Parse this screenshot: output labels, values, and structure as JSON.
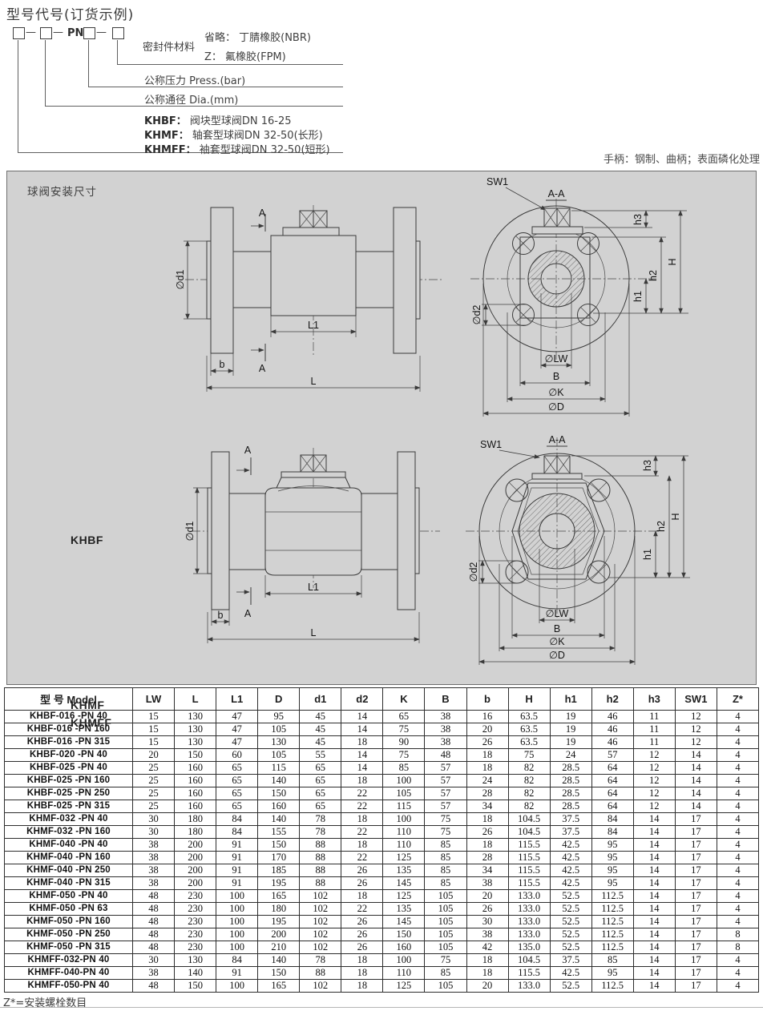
{
  "page": {
    "title": "型号代号(订货示例)",
    "footnote": "Z*=安装螺栓数目"
  },
  "header": {
    "code": {
      "dash": "—",
      "pn": "PN"
    },
    "seal_label": "密封件材料",
    "seal_default": "省略： 丁腈橡胶(NBR)",
    "seal_z": "Z： 氟橡胶(FPM)",
    "pressure": "公称压力 Press.(bar)",
    "diameter": "公称通径 Dia.(mm)",
    "models": [
      {
        "code": "KHBF：",
        "desc": "阀块型球阀DN 16-25"
      },
      {
        "code": "KHMF：",
        "desc": "轴套型球阀DN 32-50(长形)"
      },
      {
        "code": "KHMFF：",
        "desc": "袖套型球阀DN 32-50(短形)"
      }
    ],
    "handle_note": "手柄：钢制、曲柄；表面磷化处理"
  },
  "drawing": {
    "panel_title": "球阀安装尺寸",
    "view1_label": "KHBF",
    "view2_label1": "KHMF",
    "view2_label2": "KHMFF"
  },
  "dims": {
    "d1": "∅d1",
    "L1": "L1",
    "b": "b",
    "L": "L",
    "A": "A",
    "sw1": "SW1",
    "section": "A-A",
    "h1": "h1",
    "h2": "h2",
    "h3": "h3",
    "H": "H",
    "d2": "∅d2",
    "LW": "∅LW",
    "B": "B",
    "K": "∅K",
    "D": "∅D"
  },
  "table": {
    "headers": [
      "型  号 Model",
      "LW",
      "L",
      "L1",
      "D",
      "d1",
      "d2",
      "K",
      "B",
      "b",
      "H",
      "h1",
      "h2",
      "h3",
      "SW1",
      "Z*"
    ],
    "rows": [
      [
        "KHBF-016 -PN 40",
        "15",
        "130",
        "47",
        "95",
        "45",
        "14",
        "65",
        "38",
        "16",
        "63.5",
        "19",
        "46",
        "11",
        "12",
        "4"
      ],
      [
        "KHBF-016 -PN 160",
        "15",
        "130",
        "47",
        "105",
        "45",
        "14",
        "75",
        "38",
        "20",
        "63.5",
        "19",
        "46",
        "11",
        "12",
        "4"
      ],
      [
        "KHBF-016 -PN 315",
        "15",
        "130",
        "47",
        "130",
        "45",
        "18",
        "90",
        "38",
        "26",
        "63.5",
        "19",
        "46",
        "11",
        "12",
        "4"
      ],
      [
        "KHBF-020 -PN 40",
        "20",
        "150",
        "60",
        "105",
        "55",
        "14",
        "75",
        "48",
        "18",
        "75",
        "24",
        "57",
        "12",
        "14",
        "4"
      ],
      [
        "KHBF-025 -PN 40",
        "25",
        "160",
        "65",
        "115",
        "65",
        "14",
        "85",
        "57",
        "18",
        "82",
        "28.5",
        "64",
        "12",
        "14",
        "4"
      ],
      [
        "KHBF-025 -PN 160",
        "25",
        "160",
        "65",
        "140",
        "65",
        "18",
        "100",
        "57",
        "24",
        "82",
        "28.5",
        "64",
        "12",
        "14",
        "4"
      ],
      [
        "KHBF-025 -PN 250",
        "25",
        "160",
        "65",
        "150",
        "65",
        "22",
        "105",
        "57",
        "28",
        "82",
        "28.5",
        "64",
        "12",
        "14",
        "4"
      ],
      [
        "KHBF-025 -PN 315",
        "25",
        "160",
        "65",
        "160",
        "65",
        "22",
        "115",
        "57",
        "34",
        "82",
        "28.5",
        "64",
        "12",
        "14",
        "4"
      ],
      [
        "KHMF-032 -PN 40",
        "30",
        "180",
        "84",
        "140",
        "78",
        "18",
        "100",
        "75",
        "18",
        "104.5",
        "37.5",
        "84",
        "14",
        "17",
        "4"
      ],
      [
        "KHMF-032 -PN 160",
        "30",
        "180",
        "84",
        "155",
        "78",
        "22",
        "110",
        "75",
        "26",
        "104.5",
        "37.5",
        "84",
        "14",
        "17",
        "4"
      ],
      [
        "KHMF-040 -PN 40",
        "38",
        "200",
        "91",
        "150",
        "88",
        "18",
        "110",
        "85",
        "18",
        "115.5",
        "42.5",
        "95",
        "14",
        "17",
        "4"
      ],
      [
        "KHMF-040 -PN 160",
        "38",
        "200",
        "91",
        "170",
        "88",
        "22",
        "125",
        "85",
        "28",
        "115.5",
        "42.5",
        "95",
        "14",
        "17",
        "4"
      ],
      [
        "KHMF-040 -PN 250",
        "38",
        "200",
        "91",
        "185",
        "88",
        "26",
        "135",
        "85",
        "34",
        "115.5",
        "42.5",
        "95",
        "14",
        "17",
        "4"
      ],
      [
        "KHMF-040 -PN 315",
        "38",
        "200",
        "91",
        "195",
        "88",
        "26",
        "145",
        "85",
        "38",
        "115.5",
        "42.5",
        "95",
        "14",
        "17",
        "4"
      ],
      [
        "KHMF-050 -PN 40",
        "48",
        "230",
        "100",
        "165",
        "102",
        "18",
        "125",
        "105",
        "20",
        "133.0",
        "52.5",
        "112.5",
        "14",
        "17",
        "4"
      ],
      [
        "KHMF-050 -PN 63",
        "48",
        "230",
        "100",
        "180",
        "102",
        "22",
        "135",
        "105",
        "26",
        "133.0",
        "52.5",
        "112.5",
        "14",
        "17",
        "4"
      ],
      [
        "KHMF-050 -PN 160",
        "48",
        "230",
        "100",
        "195",
        "102",
        "26",
        "145",
        "105",
        "30",
        "133.0",
        "52.5",
        "112.5",
        "14",
        "17",
        "4"
      ],
      [
        "KHMF-050 -PN 250",
        "48",
        "230",
        "100",
        "200",
        "102",
        "26",
        "150",
        "105",
        "38",
        "133.0",
        "52.5",
        "112.5",
        "14",
        "17",
        "8"
      ],
      [
        "KHMF-050 -PN 315",
        "48",
        "230",
        "100",
        "210",
        "102",
        "26",
        "160",
        "105",
        "42",
        "135.0",
        "52.5",
        "112.5",
        "14",
        "17",
        "8"
      ],
      [
        "KHMFF-032-PN 40",
        "30",
        "130",
        "84",
        "140",
        "78",
        "18",
        "100",
        "75",
        "18",
        "104.5",
        "37.5",
        "85",
        "14",
        "17",
        "4"
      ],
      [
        "KHMFF-040-PN 40",
        "38",
        "140",
        "91",
        "150",
        "88",
        "18",
        "110",
        "85",
        "18",
        "115.5",
        "42.5",
        "95",
        "14",
        "17",
        "4"
      ],
      [
        "KHMFF-050-PN 40",
        "48",
        "150",
        "100",
        "165",
        "102",
        "18",
        "125",
        "105",
        "20",
        "133.0",
        "52.5",
        "112.5",
        "14",
        "17",
        "4"
      ]
    ]
  }
}
